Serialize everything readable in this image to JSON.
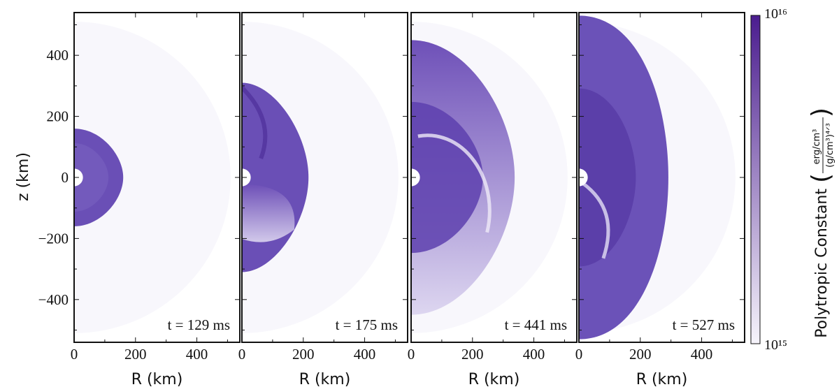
{
  "chart_data": {
    "type": "heatmap",
    "ylabel": "z  (km)",
    "ylim": [
      -540,
      540
    ],
    "yticks": [
      -400,
      -200,
      0,
      200,
      400
    ],
    "colorbar": {
      "label": "Polytropic Constant",
      "unit_numerator": "erg/cm³",
      "unit_denominator": "(g/cm³)⁴ᐟ³",
      "min_label": "10¹⁵",
      "max_label": "10¹⁶",
      "min": 1000000000000000.0,
      "max": 1e+16,
      "scale": "log",
      "color_low": "#f6f4fb",
      "color_high": "#4b1d8f"
    },
    "panels": [
      {
        "time_label": "t = 129 ms",
        "xlabel": "R  (km)",
        "xlim": [
          0,
          540
        ],
        "xticks": [
          0,
          200,
          400
        ],
        "shock_radius_km": 160
      },
      {
        "time_label": "t = 175 ms",
        "xlabel": "R  (km)",
        "xlim": [
          0,
          540
        ],
        "xticks": [
          0,
          200,
          400
        ],
        "shock_radius_km": 310
      },
      {
        "time_label": "t = 441 ms",
        "xlabel": "R  (km)",
        "xlim": [
          0,
          540
        ],
        "xticks": [
          0,
          200,
          400
        ],
        "shock_radius_km": 450
      },
      {
        "time_label": "t = 527 ms",
        "xlabel": "R  (km)",
        "xlim": [
          0,
          540
        ],
        "xticks": [
          0,
          200,
          400
        ],
        "shock_radius_km": 530
      }
    ]
  }
}
